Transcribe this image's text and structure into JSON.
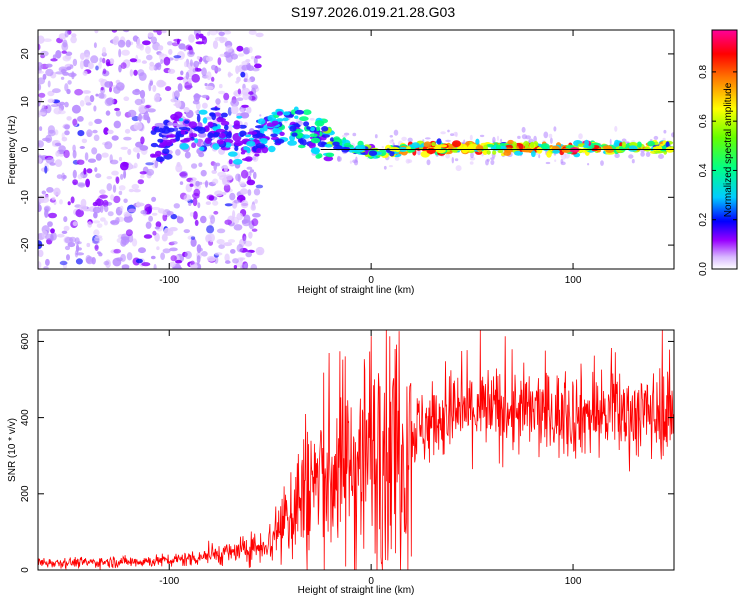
{
  "title": "S197.2026.019.21.28.G03",
  "chart_data": [
    {
      "type": "heatmap",
      "title": "S197.2026.019.21.28.G03",
      "xlabel": "Height of straight line (km)",
      "ylabel": "Frequency (Hz)",
      "xlim": [
        -165,
        150
      ],
      "ylim": [
        -25,
        25
      ],
      "xticks": [
        -100,
        0,
        100
      ],
      "yticks": [
        -20,
        -10,
        0,
        10,
        20
      ],
      "colorbar": {
        "label": "Normalized spectral amplitude",
        "range": [
          0,
          1
        ],
        "ticks": [
          "0.0",
          "0.2",
          "0.4",
          "0.6",
          "0.8"
        ],
        "colors": [
          "#ffffff",
          "#cc99ff",
          "#8800ff",
          "#0000ff",
          "#00ffff",
          "#00ff00",
          "#ffff00",
          "#ff6600",
          "#ff0000",
          "#ff0099"
        ]
      },
      "ridge": [
        {
          "x": -165,
          "freq": null,
          "amp": 0.1
        },
        {
          "x": -100,
          "freq": 3,
          "amp": 0.3
        },
        {
          "x": -80,
          "freq": 5,
          "amp": 0.4
        },
        {
          "x": -60,
          "freq": 1,
          "amp": 0.35
        },
        {
          "x": -45,
          "freq": 6,
          "amp": 0.45
        },
        {
          "x": -25,
          "freq": 2,
          "amp": 0.5
        },
        {
          "x": -10,
          "freq": 0.5,
          "amp": 0.6
        },
        {
          "x": 0,
          "freq": -0.5,
          "amp": 0.55
        },
        {
          "x": 20,
          "freq": 0.2,
          "amp": 0.85
        },
        {
          "x": 60,
          "freq": 0.5,
          "amp": 0.8
        },
        {
          "x": 100,
          "freq": 0.2,
          "amp": 0.9
        },
        {
          "x": 150,
          "freq": 0.5,
          "amp": 0.7
        }
      ]
    },
    {
      "type": "line",
      "xlabel": "Height of straight line (km)",
      "ylabel": "SNR (10 * v/v)",
      "xlim": [
        -165,
        150
      ],
      "ylim": [
        0,
        630
      ],
      "xticks": [
        -100,
        0,
        100
      ],
      "yticks": [
        0,
        200,
        400,
        600
      ],
      "series": [
        {
          "name": "SNR",
          "color": "#ff0000",
          "x": [
            -165,
            -140,
            -120,
            -100,
            -90,
            -80,
            -70,
            -60,
            -50,
            -45,
            -40,
            -30,
            -20,
            -10,
            0,
            10,
            20,
            30,
            40,
            50,
            60,
            70,
            80,
            90,
            100,
            110,
            120,
            130,
            140,
            150
          ],
          "y": [
            20,
            20,
            22,
            25,
            30,
            40,
            45,
            55,
            75,
            120,
            160,
            220,
            260,
            280,
            320,
            330,
            360,
            390,
            410,
            420,
            420,
            415,
            415,
            410,
            410,
            410,
            410,
            410,
            410,
            420
          ]
        }
      ]
    }
  ]
}
